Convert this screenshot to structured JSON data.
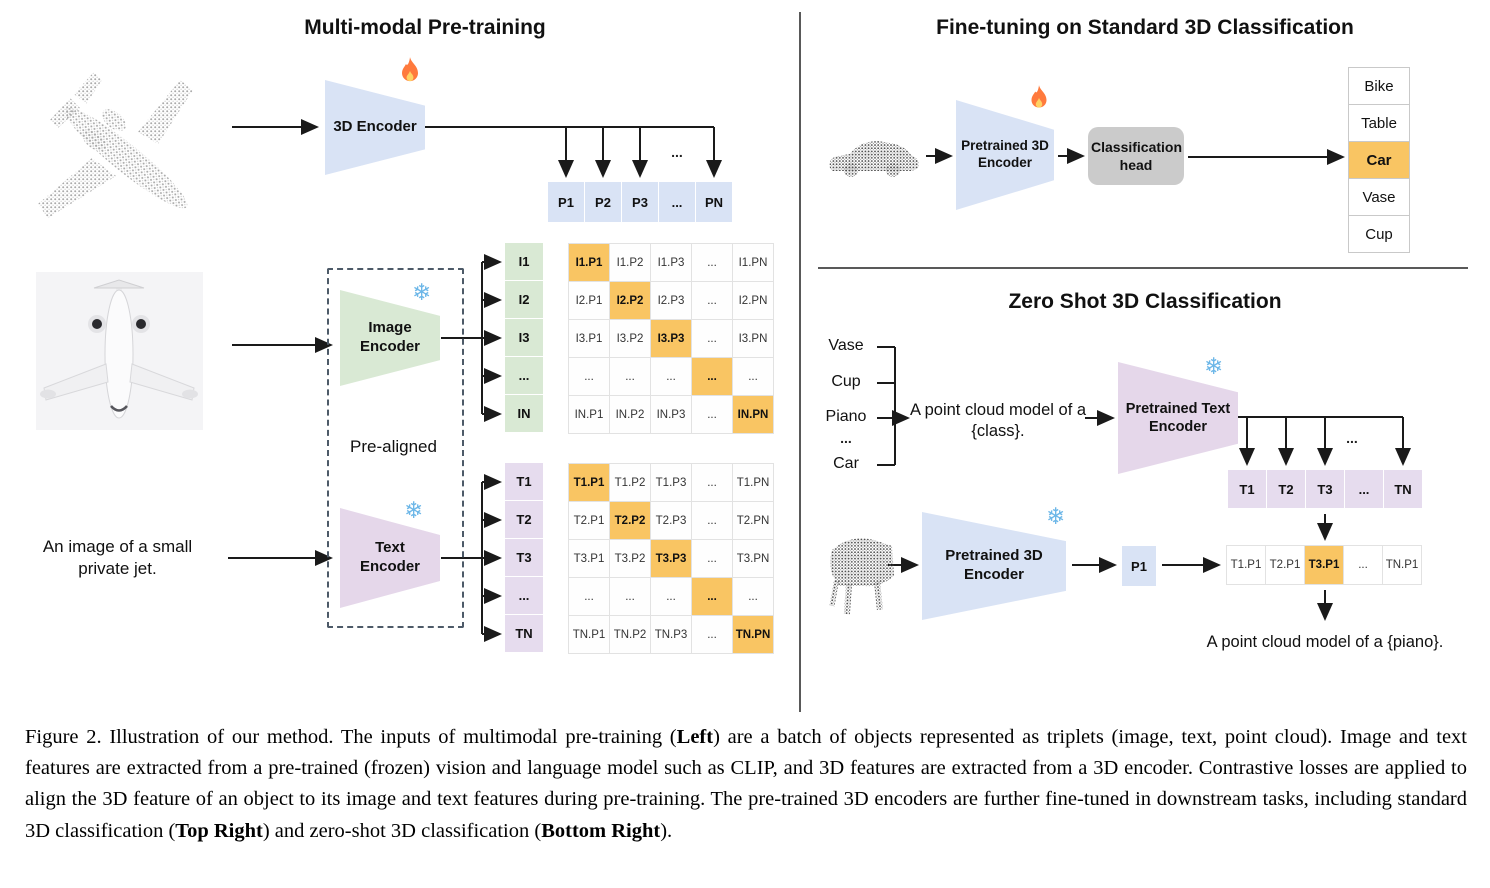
{
  "left": {
    "title": "Multi-modal Pre-training",
    "encoder3d_label": "3D Encoder",
    "image_encoder_label": "Image Encoder",
    "text_encoder_label": "Text Encoder",
    "pre_aligned_label": "Pre-aligned",
    "text_input": "An image of a small private jet.",
    "p_row": [
      "P1",
      "P2",
      "P3",
      "...",
      "PN"
    ],
    "i_labels": [
      "I1",
      "I2",
      "I3",
      "...",
      "IN"
    ],
    "i_matrix": [
      [
        "I1.P1",
        "I1.P2",
        "I1.P3",
        "...",
        "I1.PN"
      ],
      [
        "I2.P1",
        "I2.P2",
        "I2.P3",
        "...",
        "I2.PN"
      ],
      [
        "I3.P1",
        "I3.P2",
        "I3.P3",
        "...",
        "I3.PN"
      ],
      [
        "...",
        "...",
        "...",
        "...",
        "..."
      ],
      [
        "IN.P1",
        "IN.P2",
        "IN.P3",
        "...",
        "IN.PN"
      ]
    ],
    "t_labels": [
      "T1",
      "T2",
      "T3",
      "...",
      "TN"
    ],
    "t_matrix": [
      [
        "T1.P1",
        "T1.P2",
        "T1.P3",
        "...",
        "T1.PN"
      ],
      [
        "T2.P1",
        "T2.P2",
        "T2.P3",
        "...",
        "T2.PN"
      ],
      [
        "T3.P1",
        "T3.P2",
        "T3.P3",
        "...",
        "T3.PN"
      ],
      [
        "...",
        "...",
        "...",
        "...",
        "..."
      ],
      [
        "TN.P1",
        "TN.P2",
        "TN.P3",
        "...",
        "TN.PN"
      ]
    ]
  },
  "top_right": {
    "title": "Fine-tuning on Standard 3D Classification",
    "encoder_label": "Pretrained 3D Encoder",
    "head_label": "Classification head",
    "classes": [
      "Bike",
      "Table",
      "Car",
      "Vase",
      "Cup"
    ],
    "predicted_class": "Car"
  },
  "bottom_right": {
    "title": "Zero Shot 3D Classification",
    "candidate_classes": [
      "Vase",
      "Cup",
      "Piano",
      "...",
      "Car"
    ],
    "prompt": "A point cloud model of a {class}.",
    "text_encoder_label": "Pretrained Text Encoder",
    "t_row": [
      "T1",
      "T2",
      "T3",
      "...",
      "TN"
    ],
    "encoder3d_label": "Pretrained 3D Encoder",
    "p_feature": "P1",
    "similarity_row": [
      "T1.P1",
      "T2.P1",
      "T3.P1",
      "...",
      "TN.P1"
    ],
    "best_match": "T3.P1",
    "output_text": "A point cloud model of a {piano}."
  },
  "misc": {
    "ellipsis": "...",
    "snowflake_glyph": "❄"
  },
  "caption": {
    "label": "Figure 2.",
    "segments": [
      {
        "text": "Figure 2. Illustration of our method. The inputs of multimodal pre-training (",
        "bold": false
      },
      {
        "text": "Left",
        "bold": true
      },
      {
        "text": ") are a batch of objects represented as triplets (image, text, point cloud). Image and text features are extracted from a pre-trained (frozen) vision and language model such as CLIP, and 3D features are extracted from a 3D encoder. Contrastive losses are applied to align the 3D feature of an object to its image and text features during pre-training. The pre-trained 3D encoders are further fine-tuned in downstream tasks, including standard 3D classification (",
        "bold": false
      },
      {
        "text": "Top Right",
        "bold": true
      },
      {
        "text": ") and zero-shot 3D classification (",
        "bold": false
      },
      {
        "text": "Bottom Right",
        "bold": true
      },
      {
        "text": ").",
        "bold": false
      }
    ]
  },
  "colors": {
    "feature_blue": "#d9e3f5",
    "image_green": "#d9e9d4",
    "text_purple_cell": "#e6dcee",
    "text_purple_enc": "#e5d7ea",
    "highlight_orange": "#f9c563",
    "head_gray": "#cbcbcb"
  }
}
